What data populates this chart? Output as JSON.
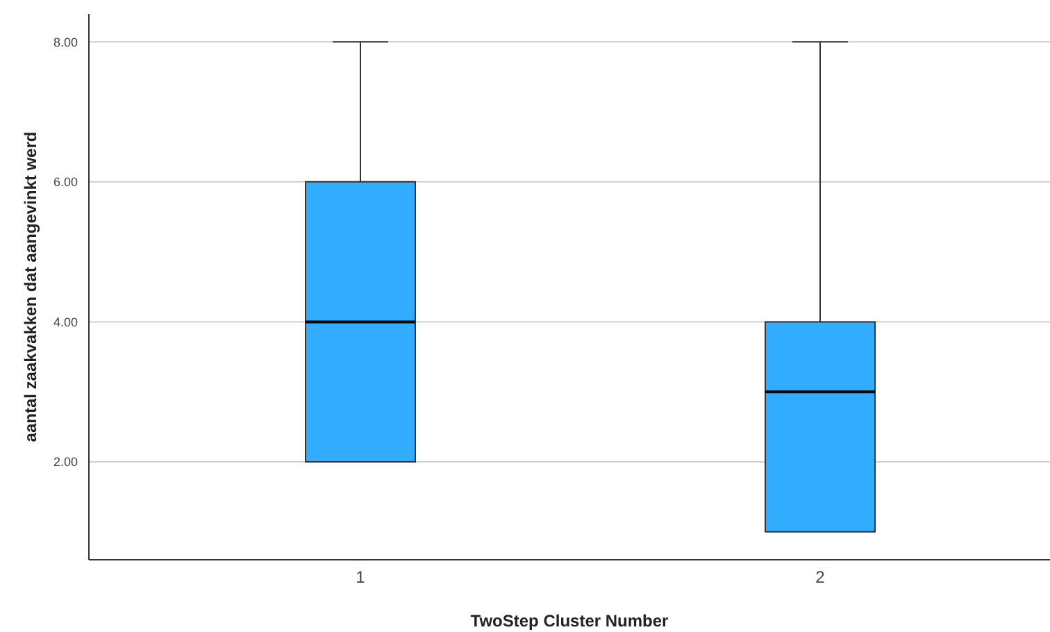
{
  "chart_data": {
    "type": "box",
    "xlabel": "TwoStep Cluster Number",
    "ylabel": "aantal zaakvakken dat aangevinkt werd",
    "categories": [
      "1",
      "2"
    ],
    "boxes": [
      {
        "low": 2,
        "q1": 2,
        "median": 4,
        "q3": 6,
        "high": 8
      },
      {
        "low": 1,
        "q1": 1,
        "median": 3,
        "q3": 4,
        "high": 8
      }
    ],
    "color": "#31acff",
    "ylim": [
      0.6,
      8.4
    ],
    "yticks": [
      {
        "value": 2,
        "label": "2.00"
      },
      {
        "value": 4,
        "label": "4.00"
      },
      {
        "value": 6,
        "label": "6.00"
      },
      {
        "value": 8,
        "label": "8.00"
      }
    ],
    "grid": "y"
  }
}
